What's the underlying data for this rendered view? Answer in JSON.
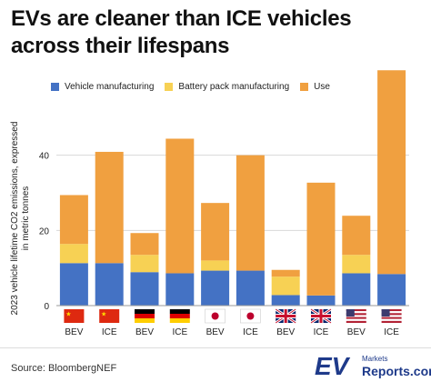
{
  "page": {
    "title": "EVs are cleaner than ICE vehicles across their lifespans",
    "source": "Source: BloombergNEF",
    "logo": {
      "primary": "EV",
      "top": "Markets",
      "bottom": "Reports.com"
    }
  },
  "colors": {
    "vehicle_manufacturing": "#4472c4",
    "battery_pack_manufacturing": "#f7d154",
    "use": "#f0a040",
    "axis_text": "#222222",
    "grid": "#d8d8d8"
  },
  "chart_data": {
    "type": "bar",
    "stacked": true,
    "title": "EVs are cleaner than ICE vehicles across their lifespans",
    "ylabel": "2023 vehicle lifetime CO2 emissions, expressed in metric tonnes",
    "ylim": [
      0,
      60
    ],
    "yticks": [
      0,
      20,
      40
    ],
    "grid": true,
    "legend_position": "top-left",
    "categories": [
      "BEV",
      "ICE",
      "BEV",
      "ICE",
      "BEV",
      "ICE",
      "BEV",
      "ICE",
      "BEV",
      "ICE"
    ],
    "category_flags": [
      "china-flag",
      "china-flag",
      "germany-flag",
      "germany-flag",
      "japan-flag",
      "japan-flag",
      "uk-flag",
      "uk-flag",
      "usa-flag",
      "usa-flag"
    ],
    "series": [
      {
        "name": "Vehicle manufacturing",
        "color": "#4472c4",
        "values": [
          11.3,
          11.3,
          8.9,
          8.6,
          9.3,
          9.3,
          2.8,
          2.7,
          8.6,
          8.4
        ]
      },
      {
        "name": "Battery pack manufacturing",
        "color": "#f7d154",
        "values": [
          5.1,
          0,
          4.6,
          0,
          2.7,
          0,
          4.9,
          0,
          4.9,
          0
        ]
      },
      {
        "name": "Use",
        "color": "#f0a040",
        "values": [
          13.0,
          29.6,
          5.8,
          35.8,
          15.3,
          30.7,
          1.8,
          30.0,
          10.4,
          54.2
        ]
      }
    ]
  }
}
